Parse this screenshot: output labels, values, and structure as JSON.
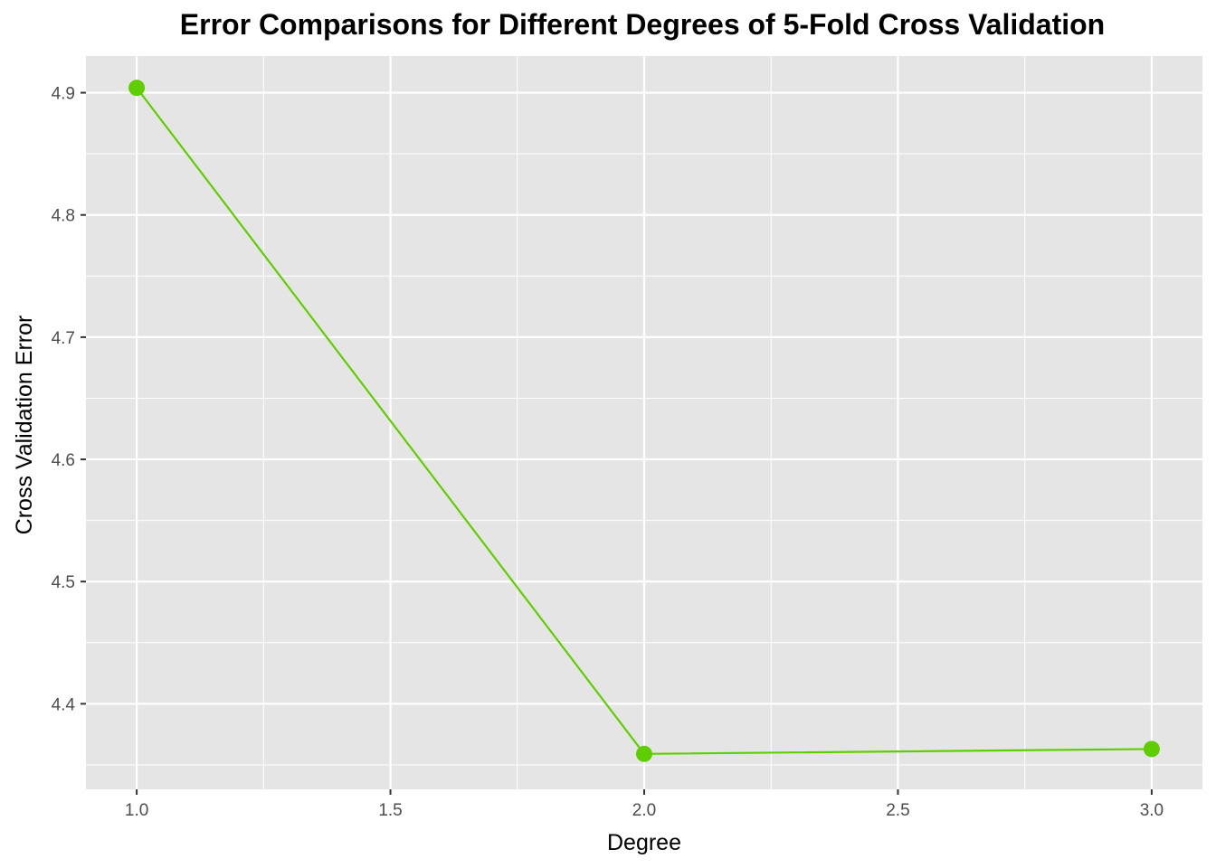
{
  "chart_data": {
    "type": "line",
    "title": "Error Comparisons for Different Degrees of 5-Fold Cross Validation",
    "xlabel": "Degree",
    "ylabel": "Cross Validation Error",
    "x": [
      1,
      2,
      3
    ],
    "series": [
      {
        "values": [
          4.904,
          4.359,
          4.363
        ],
        "color": "#5fce00"
      }
    ],
    "xlim": [
      0.9,
      3.1
    ],
    "ylim": [
      4.33,
      4.93
    ],
    "x_ticks": [
      1.0,
      1.5,
      2.0,
      2.5,
      3.0
    ],
    "x_tick_labels": [
      "1.0",
      "1.5",
      "2.0",
      "2.5",
      "3.0"
    ],
    "y_ticks": [
      4.4,
      4.5,
      4.6,
      4.7,
      4.8,
      4.9
    ],
    "y_tick_labels": [
      "4.4",
      "4.5",
      "4.6",
      "4.7",
      "4.8",
      "4.9"
    ],
    "x_minor_ticks": [
      1.25,
      1.75,
      2.25,
      2.75
    ],
    "y_minor_ticks": [
      4.35,
      4.45,
      4.55,
      4.65,
      4.75,
      4.85
    ],
    "grid": true,
    "panel_color": "#e5e5e5",
    "grid_color": "#ffffff",
    "legend": "none"
  }
}
